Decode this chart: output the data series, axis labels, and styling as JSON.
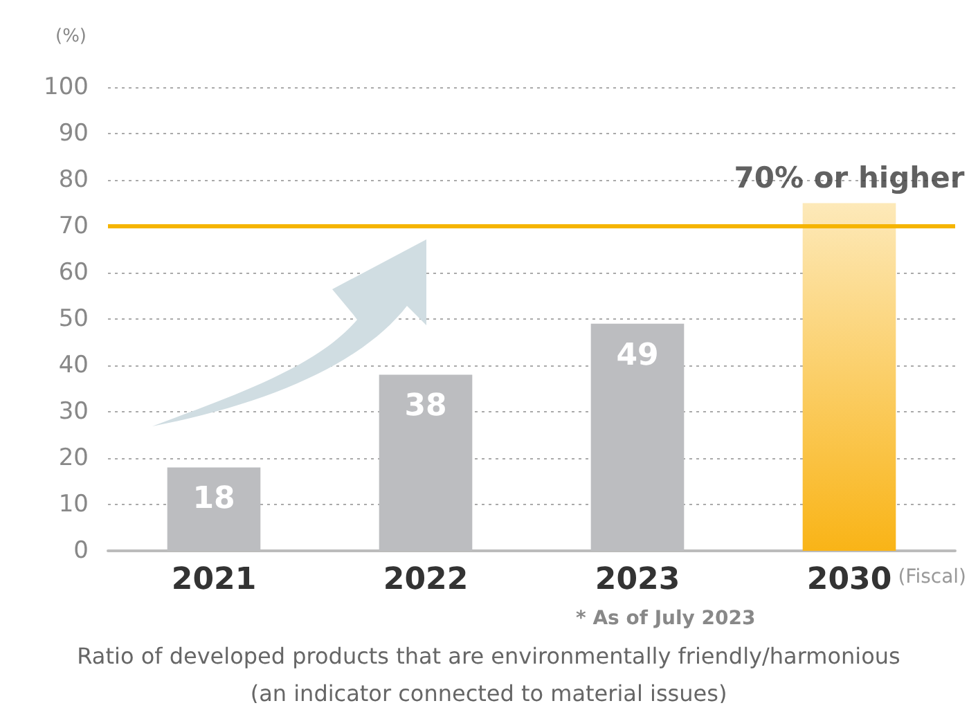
{
  "chart_data": {
    "type": "bar",
    "categories": [
      "2021",
      "2022",
      "2023",
      "2030"
    ],
    "values": [
      18,
      38,
      49,
      75
    ],
    "colors": [
      "#bcbdc0",
      "#bcbdc0",
      "#bcbdc0",
      "#f9b417"
    ],
    "value_labels": [
      "18",
      "38",
      "49",
      null
    ],
    "ylabel": "(%)",
    "xlabel": "(Fiscal)",
    "ylim": [
      0,
      100
    ],
    "yticks": [
      0,
      10,
      20,
      30,
      40,
      50,
      60,
      70,
      80,
      90,
      100
    ],
    "grid": "y",
    "ref_lines": [
      {
        "axis": "y",
        "value": 70,
        "color": "#f5b400",
        "line_style": "solid"
      }
    ],
    "annotations": [
      {
        "text": "70% or higher",
        "x": "2030",
        "y": 75
      },
      "* As of July 2023",
      "Ratio of developed products that are environmentally friendly/harmonious",
      "(an indicator connected to material issues)"
    ]
  }
}
